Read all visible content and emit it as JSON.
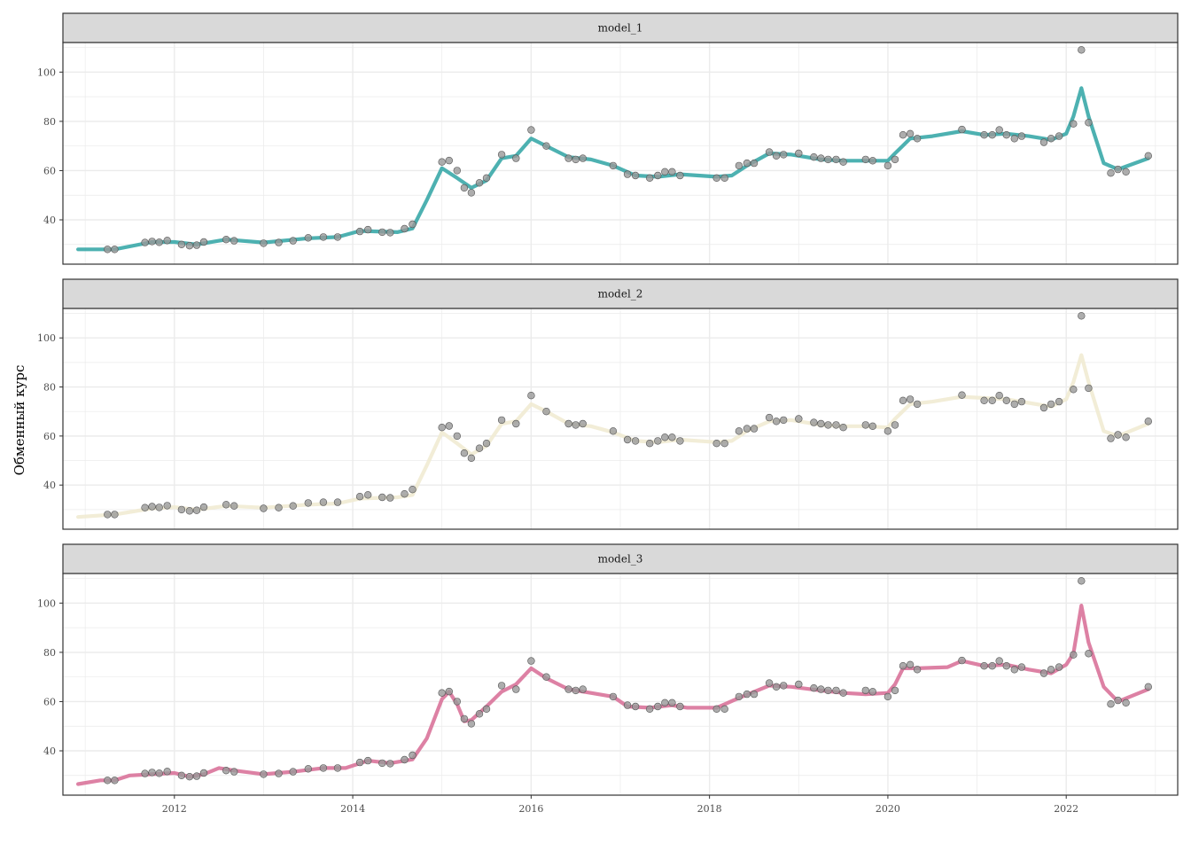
{
  "y_axis_label": "Обменный курс",
  "chart_data": {
    "type": "line",
    "facets": [
      "model_1",
      "model_2",
      "model_3"
    ],
    "ylabel": "Обменный курс",
    "xlabel": "",
    "x_ticks": [
      "2012",
      "2014",
      "2016",
      "2018",
      "2020",
      "2022"
    ],
    "y_ticks": [
      "40",
      "60",
      "80",
      "100"
    ],
    "xlim": [
      2010.75,
      2023.25
    ],
    "ylim": [
      22,
      112
    ],
    "grid": true,
    "legend": "none",
    "colors": {
      "points": "#999999",
      "model_1": "#3aa8a8",
      "model_2": "#f1ebd3",
      "model_3": "#d9739a",
      "strip_bg": "#d9d9d9",
      "grid": "#ebebeb"
    },
    "observed": {
      "x": [
        2011.25,
        2011.33,
        2011.67,
        2011.75,
        2011.83,
        2011.92,
        2012.08,
        2012.17,
        2012.25,
        2012.33,
        2012.58,
        2012.67,
        2013.0,
        2013.17,
        2013.33,
        2013.5,
        2013.67,
        2013.83,
        2014.08,
        2014.17,
        2014.33,
        2014.42,
        2014.58,
        2014.67,
        2015.0,
        2015.08,
        2015.17,
        2015.25,
        2015.33,
        2015.42,
        2015.5,
        2015.67,
        2015.83,
        2016.0,
        2016.17,
        2016.42,
        2016.5,
        2016.58,
        2016.92,
        2017.08,
        2017.17,
        2017.33,
        2017.42,
        2017.5,
        2017.58,
        2017.67,
        2018.08,
        2018.17,
        2018.33,
        2018.42,
        2018.5,
        2018.67,
        2018.75,
        2018.83,
        2019.0,
        2019.17,
        2019.25,
        2019.33,
        2019.42,
        2019.5,
        2019.75,
        2019.83,
        2020.0,
        2020.08,
        2020.17,
        2020.25,
        2020.33,
        2020.83,
        2021.08,
        2021.17,
        2021.25,
        2021.33,
        2021.42,
        2021.5,
        2021.75,
        2021.83,
        2021.92,
        2022.08,
        2022.17,
        2022.25,
        2022.5,
        2022.58,
        2022.67,
        2022.92
      ],
      "y": [
        28.0,
        28.0,
        30.8,
        31.2,
        30.9,
        31.6,
        30.0,
        29.5,
        29.7,
        31.0,
        32.0,
        31.5,
        30.5,
        30.8,
        31.5,
        32.7,
        33.0,
        33.0,
        35.3,
        36.0,
        35.0,
        34.8,
        36.4,
        38.2,
        63.5,
        64.1,
        60.0,
        53.0,
        51.0,
        55.0,
        57.0,
        66.5,
        65.0,
        76.5,
        70.0,
        65.0,
        64.5,
        65.0,
        62.0,
        58.5,
        58.0,
        57.0,
        58.0,
        59.5,
        59.5,
        58.0,
        57.0,
        57.0,
        62.0,
        63.0,
        63.0,
        67.5,
        66.0,
        66.5,
        67.0,
        65.5,
        65.0,
        64.5,
        64.5,
        63.5,
        64.5,
        64.0,
        62.0,
        64.5,
        74.5,
        75.0,
        73.0,
        76.7,
        74.5,
        74.5,
        76.5,
        74.5,
        73.0,
        74.0,
        71.5,
        73.0,
        74.0,
        79.0,
        109.0,
        79.5,
        59.0,
        60.5,
        59.5,
        66.0
      ]
    },
    "series": [
      {
        "name": "model_1",
        "x": [
          2010.92,
          2011.33,
          2011.75,
          2012.0,
          2012.25,
          2012.58,
          2013.0,
          2013.5,
          2013.83,
          2014.08,
          2014.5,
          2014.67,
          2014.83,
          2015.0,
          2015.17,
          2015.33,
          2015.5,
          2015.67,
          2015.83,
          2016.0,
          2016.17,
          2016.42,
          2016.67,
          2016.92,
          2017.17,
          2017.42,
          2017.67,
          2018.08,
          2018.25,
          2018.42,
          2018.67,
          2018.92,
          2019.25,
          2019.5,
          2019.75,
          2020.0,
          2020.08,
          2020.25,
          2020.5,
          2020.83,
          2021.08,
          2021.33,
          2021.58,
          2021.83,
          2022.0,
          2022.08,
          2022.17,
          2022.25,
          2022.42,
          2022.58,
          2022.92
        ],
        "y": [
          28.0,
          28.0,
          31.0,
          31.0,
          30.0,
          32.0,
          30.8,
          32.5,
          33.0,
          35.5,
          35.0,
          36.5,
          48.0,
          61.0,
          57.0,
          53.0,
          56.0,
          65.0,
          66.0,
          73.0,
          70.0,
          65.5,
          64.5,
          62.0,
          58.0,
          57.5,
          58.5,
          57.5,
          58.0,
          62.0,
          67.0,
          66.5,
          64.5,
          64.0,
          64.0,
          64.0,
          67.0,
          73.0,
          74.0,
          76.0,
          74.5,
          75.0,
          74.0,
          72.5,
          75.0,
          82.0,
          93.5,
          82.0,
          63.0,
          60.5,
          65.0
        ]
      },
      {
        "name": "model_2",
        "x": [
          2010.92,
          2011.33,
          2011.75,
          2012.0,
          2012.25,
          2012.58,
          2013.0,
          2013.5,
          2013.83,
          2014.08,
          2014.5,
          2014.67,
          2014.83,
          2015.0,
          2015.17,
          2015.33,
          2015.5,
          2015.67,
          2015.83,
          2016.0,
          2016.17,
          2016.42,
          2016.67,
          2016.92,
          2017.17,
          2017.42,
          2017.67,
          2018.08,
          2018.25,
          2018.42,
          2018.67,
          2018.92,
          2019.25,
          2019.5,
          2019.75,
          2020.0,
          2020.08,
          2020.25,
          2020.5,
          2020.83,
          2021.08,
          2021.33,
          2021.58,
          2021.83,
          2022.0,
          2022.08,
          2022.17,
          2022.25,
          2022.42,
          2022.58,
          2022.92
        ],
        "y": [
          27.0,
          28.0,
          30.5,
          31.0,
          30.0,
          31.5,
          30.8,
          32.0,
          32.5,
          34.5,
          35.0,
          36.0,
          48.0,
          61.5,
          57.0,
          52.5,
          56.0,
          65.0,
          66.0,
          73.0,
          70.0,
          65.0,
          64.0,
          61.5,
          58.0,
          57.5,
          58.5,
          57.5,
          58.0,
          62.0,
          66.0,
          66.5,
          64.5,
          64.0,
          64.0,
          63.5,
          67.0,
          73.0,
          74.0,
          76.0,
          75.5,
          75.0,
          73.5,
          72.0,
          75.0,
          82.0,
          93.0,
          82.0,
          62.0,
          60.0,
          65.0
        ]
      },
      {
        "name": "model_3",
        "x": [
          2010.92,
          2011.17,
          2011.33,
          2011.5,
          2011.75,
          2012.0,
          2012.17,
          2012.33,
          2012.5,
          2012.67,
          2013.0,
          2013.33,
          2013.67,
          2013.92,
          2014.17,
          2014.42,
          2014.67,
          2014.83,
          2015.0,
          2015.08,
          2015.17,
          2015.25,
          2015.33,
          2015.5,
          2015.67,
          2015.83,
          2016.0,
          2016.17,
          2016.42,
          2016.67,
          2016.92,
          2017.08,
          2017.33,
          2017.58,
          2017.75,
          2018.08,
          2018.33,
          2018.67,
          2018.92,
          2019.25,
          2019.5,
          2019.75,
          2020.0,
          2020.08,
          2020.17,
          2020.33,
          2020.67,
          2020.83,
          2021.08,
          2021.33,
          2021.58,
          2021.83,
          2022.0,
          2022.08,
          2022.17,
          2022.25,
          2022.42,
          2022.58,
          2022.92
        ],
        "y": [
          26.5,
          28.0,
          28.0,
          30.0,
          30.5,
          31.0,
          29.5,
          30.5,
          33.0,
          32.0,
          30.5,
          31.5,
          33.0,
          33.0,
          36.0,
          35.0,
          36.5,
          45.0,
          61.0,
          64.0,
          59.0,
          52.0,
          52.5,
          58.0,
          64.0,
          67.0,
          73.5,
          69.5,
          65.0,
          63.5,
          62.0,
          58.0,
          57.5,
          58.5,
          57.5,
          57.5,
          61.5,
          66.5,
          66.0,
          64.5,
          63.5,
          63.0,
          63.5,
          67.0,
          73.5,
          73.5,
          74.0,
          76.5,
          74.5,
          75.0,
          73.0,
          71.5,
          75.0,
          79.5,
          99.0,
          84.0,
          66.0,
          60.0,
          65.0
        ]
      }
    ]
  }
}
